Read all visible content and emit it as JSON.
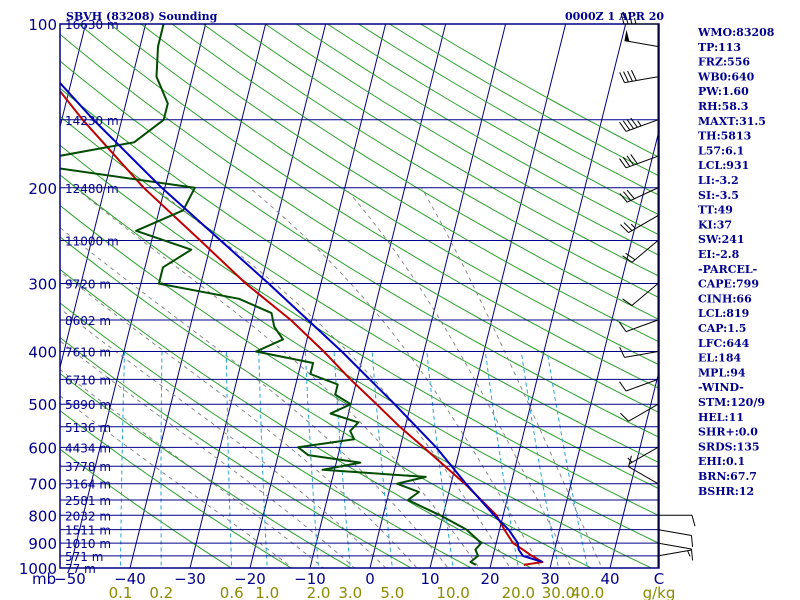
{
  "header": {
    "station": "SBVH (83208) Sounding",
    "datetime": "0000Z  1 APR 20"
  },
  "colors": {
    "frame": "#000080",
    "isobar": "#00008b",
    "isotherm": "#000080",
    "dry_adiabat": "#2ca02c",
    "moist_adiabat": "#808080",
    "mixing_ratio": "#2aa5d0",
    "temperature": "#c00000",
    "dewpoint": "#004d00",
    "parcel": "#0000c0",
    "wind": "#000000",
    "label": "#00008b",
    "mix_label": "#8b8b00"
  },
  "chart_data": {
    "type": "line",
    "subtype": "skew-T log-P diagram",
    "title": "SBVH (83208) Sounding",
    "xlabel": "",
    "ylabel": "mb",
    "x_units_label": "C",
    "mix_units_label": "g/kg",
    "pressure_levels": [
      100,
      200,
      300,
      400,
      500,
      600,
      700,
      800,
      900,
      1000
    ],
    "pressure_tick_labels": [
      "100",
      "200",
      "300",
      "400",
      "500",
      "600",
      "700",
      "800",
      "900",
      "1000"
    ],
    "pressure_axis_label": "mb",
    "height_levels": [
      {
        "p": 100,
        "label": "16630 m"
      },
      {
        "p": 150,
        "label": "14230 m"
      },
      {
        "p": 200,
        "label": "12480 m"
      },
      {
        "p": 250,
        "label": "11000 m"
      },
      {
        "p": 300,
        "label": "9720 m"
      },
      {
        "p": 350,
        "label": "8602 m"
      },
      {
        "p": 400,
        "label": "7610 m"
      },
      {
        "p": 450,
        "label": "6710 m"
      },
      {
        "p": 500,
        "label": "5890 m"
      },
      {
        "p": 550,
        "label": "5136 m"
      },
      {
        "p": 600,
        "label": "4434 m"
      },
      {
        "p": 650,
        "label": "3778 m"
      },
      {
        "p": 700,
        "label": "3164 m"
      },
      {
        "p": 750,
        "label": "2581 m"
      },
      {
        "p": 800,
        "label": "2032 m"
      },
      {
        "p": 850,
        "label": "1511 m"
      },
      {
        "p": 900,
        "label": "1010 m"
      },
      {
        "p": 950,
        "label": "571 m"
      },
      {
        "p": 1000,
        "label": "77 m"
      }
    ],
    "temperature_ticks": [
      -50,
      -40,
      -30,
      -20,
      -10,
      0,
      10,
      20,
      30,
      40
    ],
    "temperature_tick_labels": [
      "−50",
      "−40",
      "−30",
      "−20",
      "−10",
      "0",
      "10",
      "20",
      "30",
      "40"
    ],
    "mixing_ratio_lines": [
      0.1,
      0.2,
      0.6,
      1.0,
      2.0,
      3.0,
      5.0,
      10.0,
      20.0,
      30.0,
      40.0
    ],
    "mixing_ratio_tick_labels": [
      "0.1",
      "0.2",
      "0.6",
      "1.0",
      "2.0",
      "3.0",
      "5.0",
      "10.0",
      "20.0",
      "30.0",
      "40.0"
    ],
    "series": [
      {
        "key": "temperature",
        "points": [
          [
            987,
            25.5
          ],
          [
            975,
            28.5
          ],
          [
            950,
            26.5
          ],
          [
            925,
            24.7
          ],
          [
            900,
            22.8
          ],
          [
            850,
            20.8
          ],
          [
            800,
            18.9
          ],
          [
            700,
            12.3
          ],
          [
            600,
            3.9
          ],
          [
            550,
            -0.9
          ],
          [
            500,
            -5.7
          ],
          [
            450,
            -11.1
          ],
          [
            400,
            -16.7
          ],
          [
            350,
            -23.5
          ],
          [
            300,
            -32.5
          ],
          [
            250,
            -41.9
          ],
          [
            200,
            -53.5
          ],
          [
            150,
            -66.5
          ],
          [
            125,
            -74
          ],
          [
            110,
            -79
          ],
          [
            100,
            -80.5
          ]
        ]
      },
      {
        "key": "dewpoint",
        "points": [
          [
            987,
            17.5
          ],
          [
            975,
            16.5
          ],
          [
            950,
            17.5
          ],
          [
            925,
            16.8
          ],
          [
            900,
            17.5
          ],
          [
            850,
            14.5
          ],
          [
            800,
            9.5
          ],
          [
            750,
            3.5
          ],
          [
            725,
            5
          ],
          [
            700,
            1
          ],
          [
            680,
            5.5
          ],
          [
            660,
            -12
          ],
          [
            640,
            -6
          ],
          [
            620,
            -15
          ],
          [
            600,
            -17
          ],
          [
            580,
            -8
          ],
          [
            560,
            -9
          ],
          [
            540,
            -8
          ],
          [
            520,
            -13
          ],
          [
            500,
            -10
          ],
          [
            480,
            -13
          ],
          [
            460,
            -13
          ],
          [
            440,
            -18
          ],
          [
            420,
            -18
          ],
          [
            400,
            -28
          ],
          [
            380,
            -24
          ],
          [
            360,
            -26
          ],
          [
            340,
            -27
          ],
          [
            320,
            -33
          ],
          [
            300,
            -47
          ],
          [
            280,
            -47
          ],
          [
            260,
            -43
          ],
          [
            240,
            -53
          ],
          [
            220,
            -46
          ],
          [
            200,
            -45
          ],
          [
            180,
            -75
          ],
          [
            165,
            -57
          ],
          [
            150,
            -53
          ],
          [
            140,
            -53
          ],
          [
            125,
            -56
          ],
          [
            110,
            -57
          ],
          [
            100,
            -57
          ]
        ]
      },
      {
        "key": "parcel",
        "points": [
          [
            975,
            28.5
          ],
          [
            950,
            25
          ],
          [
            925,
            24
          ],
          [
            900,
            23.6
          ],
          [
            850,
            21.5
          ],
          [
            800,
            18.5
          ],
          [
            700,
            12.5
          ],
          [
            600,
            6
          ],
          [
            500,
            -2.7
          ],
          [
            400,
            -13.7
          ],
          [
            300,
            -28.7
          ],
          [
            200,
            -50.5
          ],
          [
            150,
            -64.7
          ],
          [
            120,
            -74.9
          ]
        ]
      }
    ],
    "wind_barbs": [
      {
        "p": 100,
        "dir": 270,
        "spd": 35
      },
      {
        "p": 110,
        "dir": 280,
        "spd": 50
      },
      {
        "p": 125,
        "dir": 260,
        "spd": 40
      },
      {
        "p": 150,
        "dir": 250,
        "spd": 45
      },
      {
        "p": 175,
        "dir": 250,
        "spd": 40
      },
      {
        "p": 200,
        "dir": 245,
        "spd": 30
      },
      {
        "p": 225,
        "dir": 240,
        "spd": 25
      },
      {
        "p": 250,
        "dir": 230,
        "spd": 20
      },
      {
        "p": 300,
        "dir": 230,
        "spd": 10
      },
      {
        "p": 350,
        "dir": 250,
        "spd": 10
      },
      {
        "p": 400,
        "dir": 260,
        "spd": 10
      },
      {
        "p": 450,
        "dir": 250,
        "spd": 10
      },
      {
        "p": 500,
        "dir": 240,
        "spd": 10
      },
      {
        "p": 600,
        "dir": 240,
        "spd": 5
      },
      {
        "p": 700,
        "dir": 300,
        "spd": 10
      },
      {
        "p": 800,
        "dir": 90,
        "spd": 10
      },
      {
        "p": 850,
        "dir": 100,
        "spd": 10
      },
      {
        "p": 900,
        "dir": 100,
        "spd": 10
      },
      {
        "p": 950,
        "dir": 80,
        "spd": 5
      }
    ],
    "indices": [
      "WMO:83208",
      "TP:113",
      "FRZ:556",
      "WB0:640",
      "PW:1.60",
      "RH:58.3",
      "MAXT:31.5",
      "TH:5813",
      "L57:6.1",
      "LCL:931",
      "LI:-3.2",
      "SI:-3.5",
      "TT:49",
      "KI:37",
      "SW:241",
      "EI:-2.8",
      "-PARCEL-",
      "CAPE:799",
      "CINH:66",
      "LCL:819",
      "CAP:1.5",
      "LFC:644",
      "EL:184",
      "MPL:94",
      "-WIND-",
      "STM:120/9",
      "HEL:11",
      "SHR+:0.0",
      "SRDS:135",
      "EHI:0.1",
      "BRN:67.7",
      "BSHR:12"
    ]
  }
}
